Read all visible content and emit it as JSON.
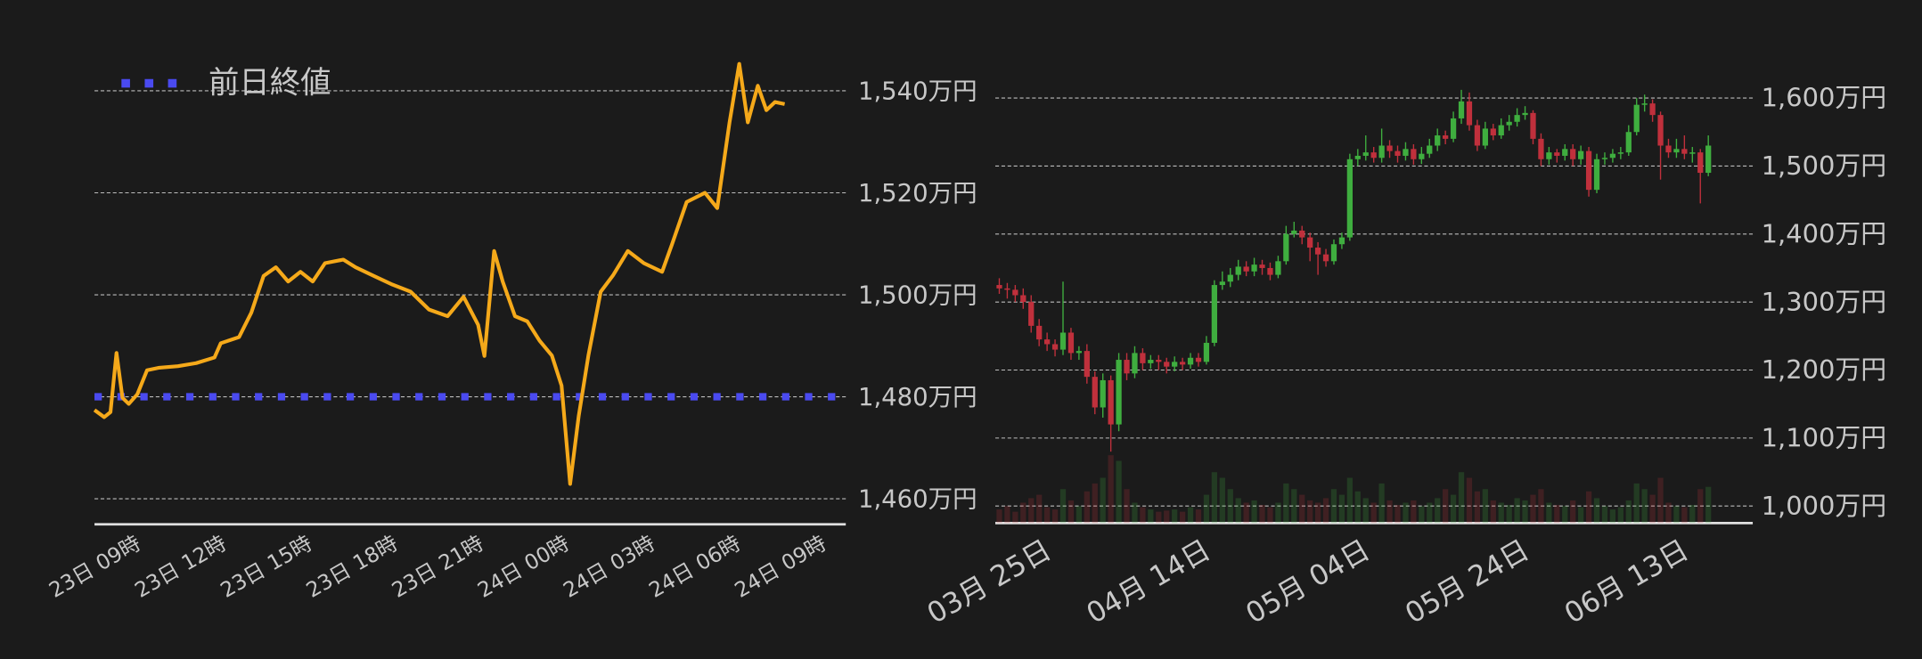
{
  "chart_data": [
    {
      "type": "line",
      "color": "#f5a91a",
      "x": [
        -1.5,
        -1.16,
        -0.94,
        -0.73,
        -0.52,
        -0.3,
        0,
        0.34,
        0.77,
        1.42,
        2.06,
        2.7,
        2.92,
        3.56,
        3.99,
        4.42,
        4.85,
        5.28,
        5.71,
        6.14,
        6.57,
        7.21,
        7.64,
        8.28,
        8.93,
        9.57,
        10.21,
        10.86,
        11.42,
        11.93,
        12.15,
        12.49,
        12.79,
        13.22,
        13.65,
        14.08,
        14.51,
        14.85,
        15.15,
        15.45,
        15.79,
        16.22,
        16.65,
        17.17,
        17.73,
        18.37,
        18.71,
        19.23,
        19.87,
        20.3,
        20.73,
        21.07,
        21.37,
        21.72,
        22.02,
        22.32,
        22.66
      ],
      "values": [
        1477.4,
        1476,
        1477,
        1488.6,
        1479.8,
        1478.6,
        1480.5,
        1485.2,
        1485.7,
        1486,
        1486.6,
        1487.7,
        1490.5,
        1491.7,
        1496.5,
        1503.7,
        1505.4,
        1502.6,
        1504.5,
        1502.6,
        1506.2,
        1506.9,
        1505.4,
        1503.7,
        1502,
        1500.6,
        1497.1,
        1495.8,
        1499.6,
        1494.1,
        1488,
        1508.6,
        1502.6,
        1495.8,
        1494.8,
        1491,
        1488.1,
        1482.2,
        1462.9,
        1476.2,
        1488.1,
        1500.6,
        1503.8,
        1508.6,
        1506.2,
        1504.5,
        1509.8,
        1518.2,
        1520,
        1517,
        1533.8,
        1545.3,
        1533.8,
        1541,
        1536.2,
        1537.8,
        1537.4
      ],
      "xlim": [
        -1.5,
        24.8
      ],
      "xticks": [
        {
          "value": 0,
          "label": "23日 09時"
        },
        {
          "value": 3,
          "label": "23日 12時"
        },
        {
          "value": 6,
          "label": "23日 15時"
        },
        {
          "value": 9,
          "label": "23日 18時"
        },
        {
          "value": 12,
          "label": "23日 21時"
        },
        {
          "value": 15,
          "label": "24日 00時"
        },
        {
          "value": 18,
          "label": "24日 03時"
        },
        {
          "value": 21,
          "label": "24日 06時"
        },
        {
          "value": 24,
          "label": "24日 09時"
        }
      ],
      "ylim": [
        1455,
        1547
      ],
      "yticks": [
        {
          "value": 1460,
          "label": "1,460万円"
        },
        {
          "value": 1480,
          "label": "1,480万円"
        },
        {
          "value": 1500,
          "label": "1,500万円"
        },
        {
          "value": 1520,
          "label": "1,520万円"
        },
        {
          "value": 1540,
          "label": "1,540万円"
        }
      ],
      "grid": true,
      "reference": {
        "name": "前日終値",
        "value": 1480,
        "color": "#4a4af0"
      },
      "legend": "top-left"
    },
    {
      "type": "candlestick",
      "up_color": "#3fae3f",
      "down_color": "#c0303c",
      "categories": [
        null,
        null,
        null,
        null,
        null,
        null,
        "03月 25日",
        null,
        null,
        null,
        null,
        null,
        null,
        null,
        null,
        null,
        null,
        null,
        null,
        null,
        null,
        null,
        null,
        null,
        null,
        null,
        "04月 14日",
        null,
        null,
        null,
        null,
        null,
        null,
        null,
        null,
        null,
        null,
        null,
        null,
        null,
        null,
        null,
        null,
        null,
        null,
        null,
        "05月 04日",
        null,
        null,
        null,
        null,
        null,
        null,
        null,
        null,
        null,
        null,
        null,
        null,
        null,
        null,
        null,
        null,
        null,
        null,
        null,
        "05月 24日",
        null,
        null,
        null,
        null,
        null,
        null,
        null,
        null,
        null,
        null,
        null,
        null,
        null,
        null,
        null,
        null,
        null,
        null,
        null,
        "06月 13日",
        null,
        null,
        null
      ],
      "open": [
        1325,
        1320,
        1318,
        1310,
        1300,
        1265,
        1245,
        1238,
        1230,
        1255,
        1225,
        1228,
        1190,
        1145,
        1185,
        1120,
        1215,
        1195,
        1225,
        1210,
        1215,
        1212,
        1205,
        1212,
        1208,
        1218,
        1212,
        1240,
        1325,
        1330,
        1340,
        1352,
        1345,
        1355,
        1350,
        1340,
        1360,
        1400,
        1405,
        1395,
        1380,
        1370,
        1360,
        1385,
        1395,
        1510,
        1515,
        1520,
        1512,
        1530,
        1522,
        1515,
        1525,
        1510,
        1518,
        1530,
        1545,
        1540,
        1570,
        1595,
        1560,
        1530,
        1555,
        1545,
        1560,
        1565,
        1575,
        1578,
        1540,
        1510,
        1520,
        1515,
        1525,
        1510,
        1522,
        1465,
        1510,
        1512,
        1518,
        1520,
        1550,
        1590,
        1592,
        1575,
        1530,
        1520,
        1525,
        1518,
        1520,
        1490
      ],
      "high": [
        1335,
        1328,
        1325,
        1320,
        1310,
        1275,
        1255,
        1245,
        1330,
        1262,
        1235,
        1238,
        1198,
        1195,
        1192,
        1225,
        1225,
        1235,
        1232,
        1222,
        1222,
        1218,
        1220,
        1218,
        1225,
        1225,
        1250,
        1332,
        1345,
        1350,
        1362,
        1360,
        1365,
        1362,
        1358,
        1368,
        1412,
        1418,
        1412,
        1402,
        1388,
        1378,
        1392,
        1402,
        1518,
        1525,
        1545,
        1528,
        1555,
        1538,
        1530,
        1535,
        1532,
        1528,
        1540,
        1555,
        1552,
        1580,
        1612,
        1608,
        1568,
        1565,
        1562,
        1570,
        1575,
        1585,
        1588,
        1582,
        1548,
        1528,
        1525,
        1532,
        1532,
        1530,
        1528,
        1518,
        1520,
        1525,
        1528,
        1560,
        1600,
        1605,
        1598,
        1580,
        1540,
        1540,
        1545,
        1528,
        1525,
        1545
      ],
      "low": [
        1312,
        1305,
        1300,
        1290,
        1255,
        1235,
        1228,
        1220,
        1222,
        1215,
        1215,
        1180,
        1135,
        1130,
        1080,
        1110,
        1185,
        1188,
        1200,
        1202,
        1200,
        1195,
        1198,
        1200,
        1202,
        1205,
        1208,
        1235,
        1318,
        1322,
        1332,
        1338,
        1338,
        1340,
        1332,
        1335,
        1355,
        1395,
        1385,
        1360,
        1340,
        1352,
        1355,
        1378,
        1390,
        1500,
        1508,
        1505,
        1505,
        1512,
        1505,
        1508,
        1502,
        1503,
        1512,
        1522,
        1532,
        1535,
        1562,
        1552,
        1522,
        1525,
        1538,
        1540,
        1552,
        1558,
        1568,
        1532,
        1500,
        1502,
        1505,
        1508,
        1500,
        1502,
        1455,
        1460,
        1502,
        1505,
        1510,
        1515,
        1545,
        1580,
        1565,
        1480,
        1512,
        1512,
        1510,
        1505,
        1445,
        1485
      ],
      "close": [
        1320,
        1318,
        1310,
        1300,
        1265,
        1245,
        1238,
        1230,
        1255,
        1225,
        1228,
        1190,
        1145,
        1185,
        1120,
        1215,
        1195,
        1225,
        1210,
        1215,
        1212,
        1205,
        1212,
        1208,
        1218,
        1212,
        1240,
        1325,
        1330,
        1340,
        1352,
        1345,
        1355,
        1350,
        1340,
        1360,
        1400,
        1405,
        1395,
        1380,
        1370,
        1360,
        1385,
        1395,
        1510,
        1515,
        1520,
        1512,
        1530,
        1522,
        1515,
        1525,
        1510,
        1518,
        1530,
        1545,
        1540,
        1570,
        1595,
        1560,
        1530,
        1555,
        1545,
        1560,
        1565,
        1575,
        1578,
        1540,
        1510,
        1520,
        1515,
        1525,
        1510,
        1522,
        1465,
        1510,
        1512,
        1518,
        1520,
        1550,
        1590,
        1592,
        1575,
        1530,
        1520,
        1525,
        1518,
        1520,
        1490,
        1530
      ],
      "volume": [
        12,
        15,
        10,
        18,
        22,
        25,
        14,
        12,
        30,
        20,
        15,
        28,
        35,
        40,
        60,
        55,
        30,
        18,
        14,
        12,
        10,
        11,
        12,
        10,
        14,
        12,
        25,
        45,
        40,
        30,
        22,
        18,
        20,
        16,
        14,
        18,
        35,
        30,
        25,
        20,
        18,
        22,
        30,
        25,
        40,
        28,
        22,
        18,
        35,
        20,
        16,
        18,
        20,
        15,
        18,
        22,
        30,
        25,
        45,
        40,
        28,
        30,
        20,
        18,
        16,
        22,
        20,
        25,
        30,
        18,
        16,
        15,
        20,
        14,
        28,
        22,
        15,
        12,
        14,
        20,
        35,
        30,
        25,
        40,
        18,
        15,
        14,
        16,
        30,
        32
      ],
      "y2lim": [
        0,
        400
      ],
      "ylim": [
        975,
        1640
      ],
      "yticks": [
        {
          "value": 1000,
          "label": "1,000万円"
        },
        {
          "value": 1100,
          "label": "1,100万円"
        },
        {
          "value": 1200,
          "label": "1,200万円"
        },
        {
          "value": 1300,
          "label": "1,300万円"
        },
        {
          "value": 1400,
          "label": "1,400万円"
        },
        {
          "value": 1500,
          "label": "1,500万円"
        },
        {
          "value": 1600,
          "label": "1,600万円"
        }
      ],
      "grid": true
    }
  ]
}
